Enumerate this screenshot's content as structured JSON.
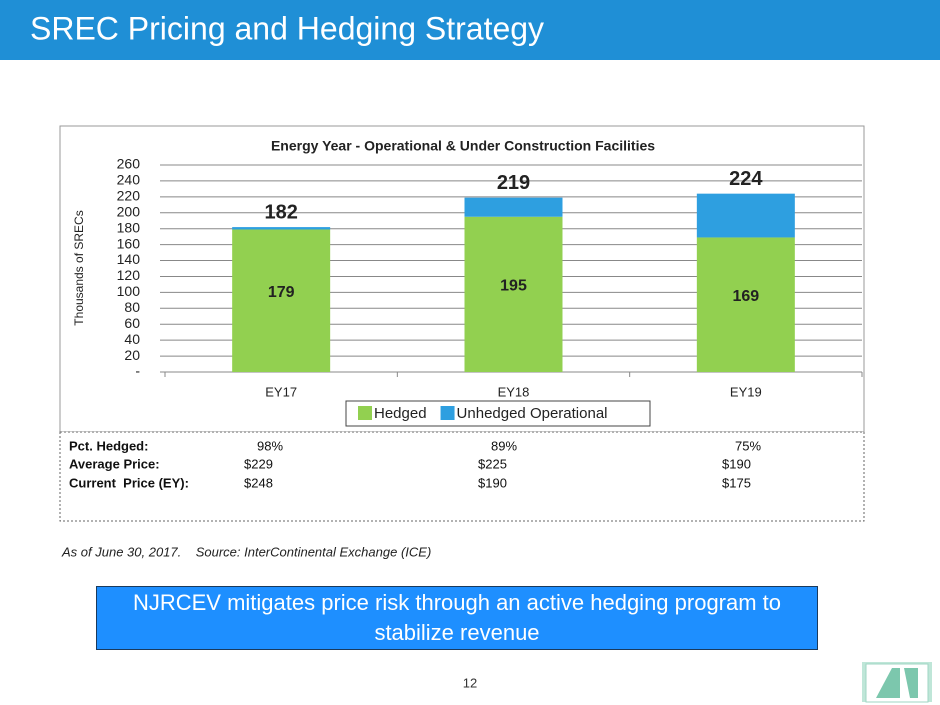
{
  "header": {
    "title": "SREC Pricing and Hedging Strategy"
  },
  "chart_data": {
    "type": "bar",
    "stacked": true,
    "title": "Energy Year - Operational & Under Construction Facilities",
    "y_label": "Thousands of SRECs",
    "categories": [
      "EY17",
      "EY18",
      "EY19"
    ],
    "series": [
      {
        "name": "Hedged",
        "color": "#92d050",
        "values": [
          179,
          195,
          169
        ]
      },
      {
        "name": "Unhedged Operational",
        "color": "#2e9fe0",
        "values": [
          3,
          24,
          55
        ]
      }
    ],
    "totals": [
      182,
      219,
      224
    ],
    "ylim": [
      0,
      260
    ],
    "yticks": [
      {
        "value": 0,
        "label": "-"
      },
      20,
      40,
      60,
      80,
      100,
      120,
      140,
      160,
      180,
      200,
      220,
      240,
      260
    ],
    "grid": true,
    "legend": "bottom"
  },
  "table": {
    "rows": [
      [
        "Pct. Hedged:",
        "98%",
        "89%",
        "75%"
      ],
      [
        "Average Price:",
        "$229",
        "$225",
        "$190"
      ],
      [
        "Current  Price (EY):",
        "$248",
        "$190",
        "$175"
      ]
    ]
  },
  "footnote": "As of June 30, 2017.    Source: InterContinental Exchange (ICE)",
  "callout": "NJRCEV mitigates price risk through an active hedging program to stabilize revenue",
  "page_number": "12"
}
